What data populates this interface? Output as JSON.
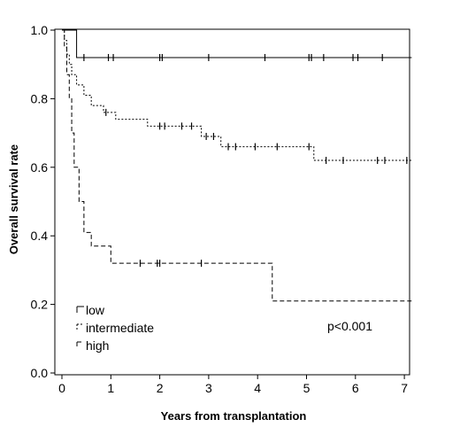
{
  "chart_data": {
    "type": "line",
    "subtype": "kaplan-meier-step",
    "title": "",
    "xlabel": "Years from transplantation",
    "ylabel": "Overall survival rate",
    "xlim": [
      0,
      7.15
    ],
    "ylim": [
      0.0,
      1.0
    ],
    "xticks": [
      0,
      1,
      2,
      3,
      4,
      5,
      6,
      7
    ],
    "xtick_labels": [
      "0",
      "1",
      "2",
      "3",
      "4",
      "5",
      "6",
      "7"
    ],
    "yticks": [
      0.0,
      0.2,
      0.4,
      0.6,
      0.8,
      1.0
    ],
    "ytick_labels": [
      "0.0",
      "0.2",
      "0.4",
      "0.6",
      "0.8",
      "1.0"
    ],
    "grid": false,
    "legend_position": "bottom-left",
    "annotation": "p<0.001",
    "series": [
      {
        "name": "low",
        "line_style": "solid",
        "steps": [
          [
            0,
            1.0
          ],
          [
            0.3,
            0.92
          ],
          [
            7.15,
            0.92
          ]
        ],
        "censored": [
          [
            0.45,
            0.92
          ],
          [
            0.95,
            0.92
          ],
          [
            1.05,
            0.92
          ],
          [
            2.0,
            0.92
          ],
          [
            2.05,
            0.92
          ],
          [
            3.0,
            0.92
          ],
          [
            4.15,
            0.92
          ],
          [
            5.05,
            0.92
          ],
          [
            5.1,
            0.92
          ],
          [
            5.35,
            0.92
          ],
          [
            5.95,
            0.92
          ],
          [
            6.05,
            0.92
          ],
          [
            6.55,
            0.92
          ]
        ]
      },
      {
        "name": "intermediate",
        "line_style": "dotted",
        "steps": [
          [
            0,
            1.0
          ],
          [
            0.05,
            0.97
          ],
          [
            0.1,
            0.93
          ],
          [
            0.15,
            0.9
          ],
          [
            0.2,
            0.87
          ],
          [
            0.3,
            0.84
          ],
          [
            0.45,
            0.81
          ],
          [
            0.6,
            0.78
          ],
          [
            0.85,
            0.76
          ],
          [
            1.1,
            0.74
          ],
          [
            1.75,
            0.72
          ],
          [
            2.85,
            0.69
          ],
          [
            3.25,
            0.66
          ],
          [
            5.15,
            0.62
          ],
          [
            7.15,
            0.62
          ]
        ],
        "censored": [
          [
            0.9,
            0.76
          ],
          [
            2.0,
            0.72
          ],
          [
            2.1,
            0.72
          ],
          [
            2.45,
            0.72
          ],
          [
            2.65,
            0.72
          ],
          [
            2.95,
            0.69
          ],
          [
            3.1,
            0.69
          ],
          [
            3.4,
            0.66
          ],
          [
            3.55,
            0.66
          ],
          [
            3.95,
            0.66
          ],
          [
            4.4,
            0.66
          ],
          [
            5.05,
            0.66
          ],
          [
            5.4,
            0.62
          ],
          [
            5.75,
            0.62
          ],
          [
            6.45,
            0.62
          ],
          [
            6.6,
            0.62
          ],
          [
            7.05,
            0.62
          ]
        ]
      },
      {
        "name": "high",
        "line_style": "dashed",
        "steps": [
          [
            0,
            1.0
          ],
          [
            0.05,
            0.95
          ],
          [
            0.1,
            0.87
          ],
          [
            0.15,
            0.8
          ],
          [
            0.2,
            0.7
          ],
          [
            0.25,
            0.6
          ],
          [
            0.35,
            0.5
          ],
          [
            0.45,
            0.41
          ],
          [
            0.6,
            0.37
          ],
          [
            1.0,
            0.32
          ],
          [
            4.3,
            0.21
          ],
          [
            7.15,
            0.21
          ]
        ],
        "censored": [
          [
            1.6,
            0.32
          ],
          [
            1.95,
            0.32
          ],
          [
            2.0,
            0.32
          ],
          [
            2.85,
            0.32
          ]
        ]
      }
    ]
  }
}
